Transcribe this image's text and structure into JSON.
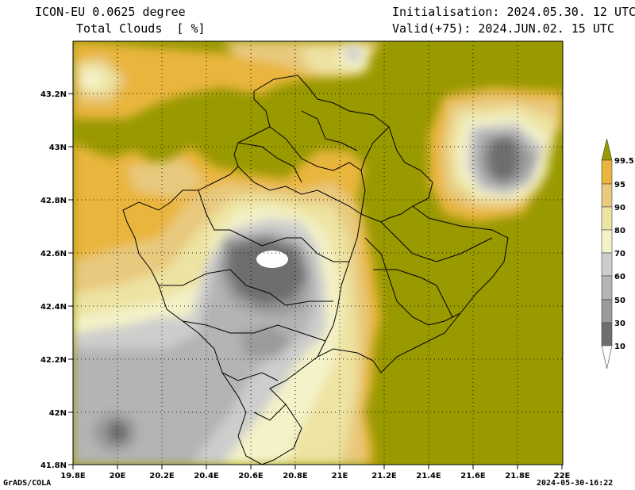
{
  "header": {
    "model": "ICON-EU 0.0625 degree",
    "field": "Total Clouds  [ %]",
    "init": "Initialisation: 2024.05.30. 12 UTC",
    "valid": "Valid(+75): 2024.JUN.02. 15 UTC"
  },
  "footer": {
    "left": "GrADS/COLA",
    "right": "2024-05-30-16:22"
  },
  "map": {
    "lon_labels": [
      "19.8E",
      "20E",
      "20.2E",
      "20.4E",
      "20.6E",
      "20.8E",
      "21E",
      "21.2E",
      "21.4E",
      "21.6E",
      "21.8E",
      "22E"
    ],
    "lat_labels": [
      "43.2N",
      "43N",
      "42.8N",
      "42.6N",
      "42.4N",
      "42.2N",
      "42N",
      "41.8N"
    ]
  },
  "legend": {
    "labels": [
      "99.5",
      "95",
      "90",
      "80",
      "70",
      "60",
      "50",
      "30",
      "10"
    ],
    "colors": {
      "c10": "#6e6e6e",
      "c30": "#9b9b9b",
      "c50": "#b4b4b4",
      "c60": "#cdcdcd",
      "c70": "#f4f2c8",
      "c80": "#ede3a2",
      "c90": "#e8c97e",
      "c95": "#e9b53e",
      "c99": "#999900",
      "white": "#ffffff"
    }
  }
}
